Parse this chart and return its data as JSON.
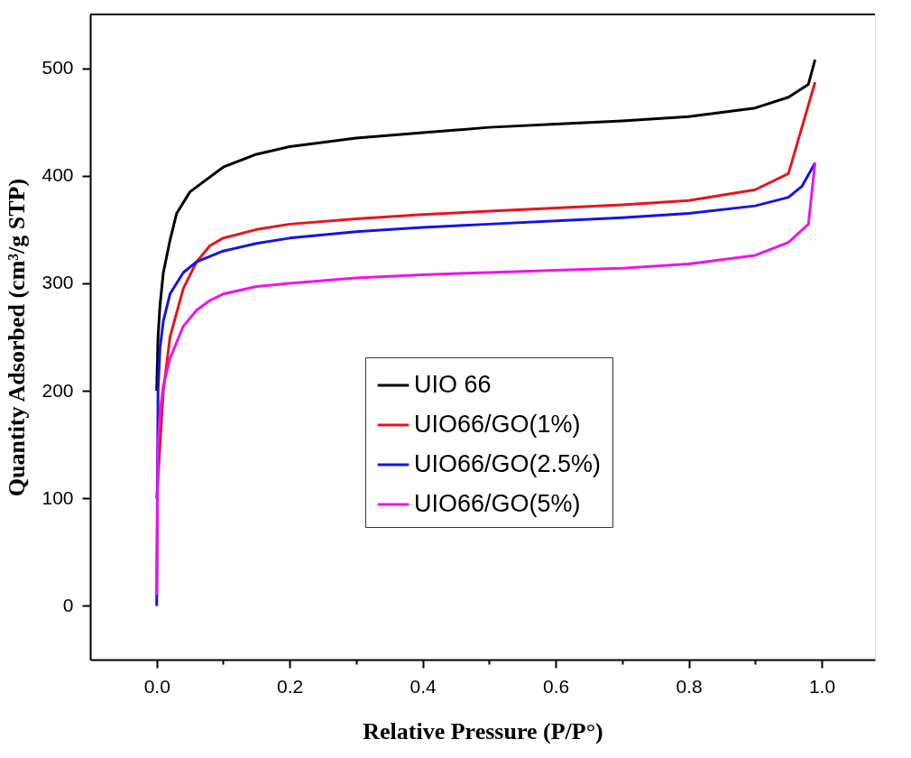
{
  "chart_data": {
    "type": "line",
    "xlabel": "Relative Pressure (P/P°)",
    "ylabel": "Quantity Adsorbed (cm³/g STP)",
    "xlim": [
      -0.1,
      1.08
    ],
    "ylim": [
      -50,
      550
    ],
    "xticks": [
      {
        "value": 0.0,
        "label": "0.0"
      },
      {
        "value": 0.1,
        "label": null
      },
      0.2,
      {
        "value": 0.3,
        "label": null
      },
      0.4,
      {
        "value": 0.5,
        "label": null
      },
      0.6,
      {
        "value": 0.7,
        "label": null
      },
      0.8,
      {
        "value": 0.9,
        "label": null
      },
      {
        "value": 1.0,
        "label": "1.0"
      }
    ],
    "yticks": [
      0,
      100,
      200,
      300,
      400,
      500
    ],
    "grid": false,
    "legend": "center",
    "marker": "none",
    "line_style": "solid",
    "series": [
      {
        "name": "UIO 66",
        "color": "#000000",
        "x": [
          0.0,
          0.002,
          0.005,
          0.01,
          0.02,
          0.03,
          0.05,
          0.1,
          0.15,
          0.2,
          0.3,
          0.4,
          0.5,
          0.6,
          0.7,
          0.8,
          0.9,
          0.95,
          0.98,
          0.99
        ],
        "values": [
          200,
          250,
          280,
          310,
          340,
          365,
          385,
          408,
          420,
          427,
          435,
          440,
          445,
          448,
          451,
          455,
          463,
          473,
          485,
          508
        ]
      },
      {
        "name": "UIO66/GO(1%)",
        "color": "#e8141c",
        "x": [
          0.0,
          0.005,
          0.01,
          0.02,
          0.04,
          0.06,
          0.08,
          0.1,
          0.15,
          0.2,
          0.3,
          0.4,
          0.5,
          0.6,
          0.7,
          0.8,
          0.9,
          0.95,
          0.99
        ],
        "values": [
          100,
          150,
          200,
          250,
          295,
          320,
          335,
          342,
          350,
          355,
          360,
          364,
          367,
          370,
          373,
          377,
          387,
          402,
          487
        ]
      },
      {
        "name": "UIO66/GO(2.5%)",
        "color": "#1414e6",
        "x": [
          0.0,
          0.002,
          0.005,
          0.01,
          0.02,
          0.04,
          0.06,
          0.1,
          0.15,
          0.2,
          0.3,
          0.4,
          0.5,
          0.6,
          0.7,
          0.8,
          0.9,
          0.95,
          0.97,
          0.99
        ],
        "values": [
          0,
          200,
          240,
          265,
          290,
          310,
          320,
          330,
          337,
          342,
          348,
          352,
          355,
          358,
          361,
          365,
          372,
          380,
          390,
          412
        ]
      },
      {
        "name": "UIO66/GO(5%)",
        "color": "#ee14ee",
        "x": [
          0.0,
          0.002,
          0.005,
          0.01,
          0.02,
          0.04,
          0.06,
          0.08,
          0.1,
          0.15,
          0.2,
          0.3,
          0.4,
          0.5,
          0.6,
          0.7,
          0.8,
          0.9,
          0.95,
          0.98,
          0.99
        ],
        "values": [
          10,
          150,
          180,
          205,
          230,
          260,
          275,
          284,
          290,
          297,
          300,
          305,
          308,
          310,
          312,
          314,
          318,
          326,
          338,
          355,
          412
        ]
      }
    ]
  }
}
